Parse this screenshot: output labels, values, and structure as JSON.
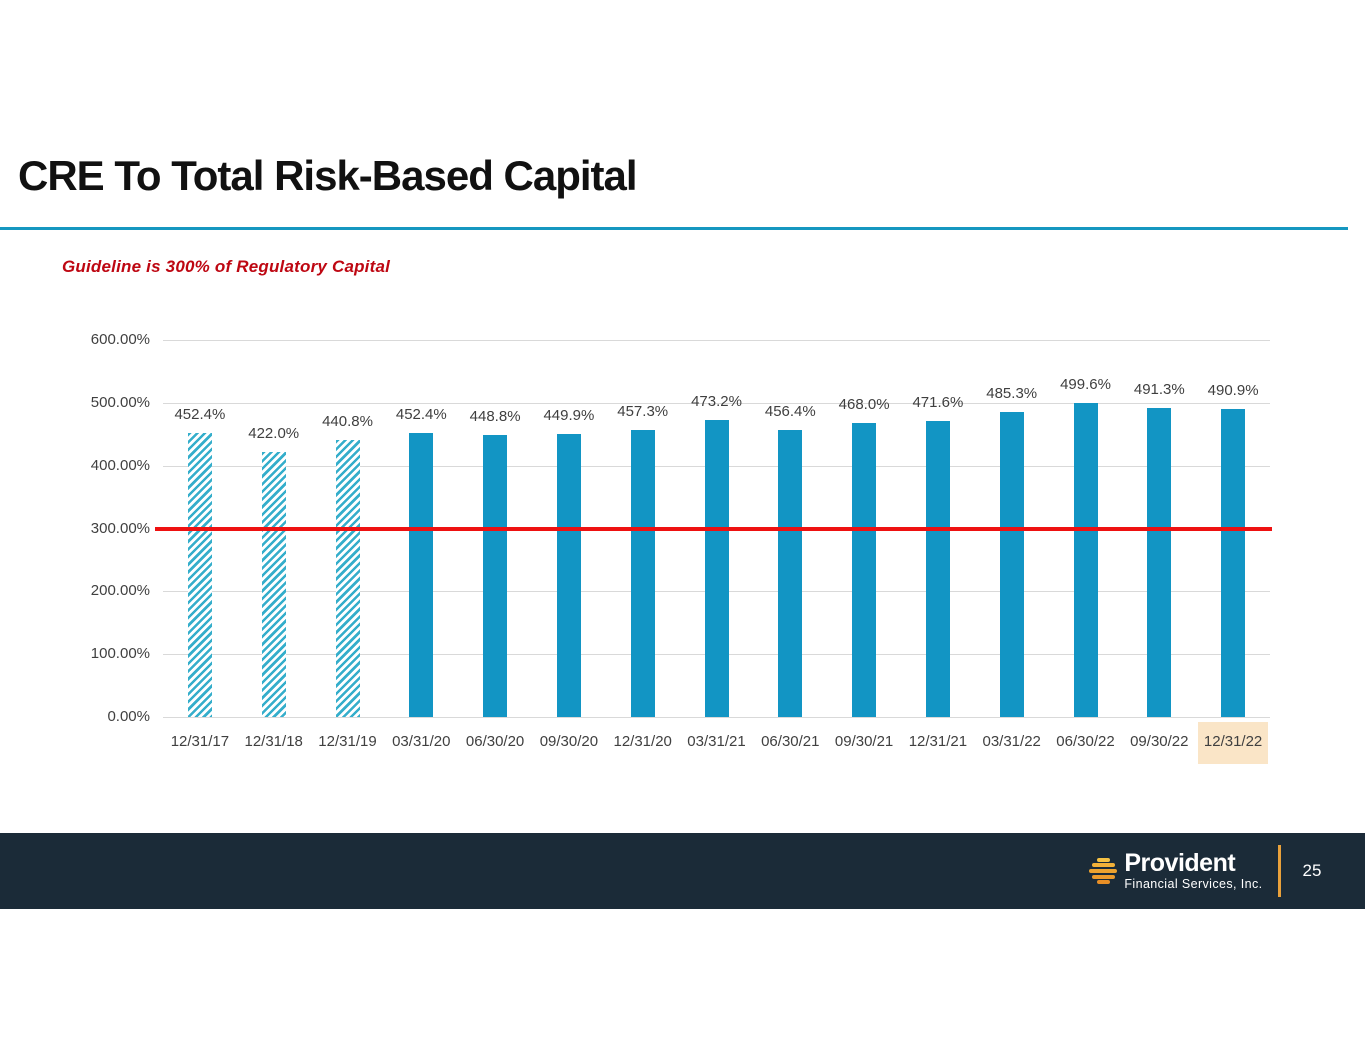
{
  "slide": {
    "title": "CRE To Total Risk-Based Capital",
    "subtitle": "Guideline is 300% of Regulatory Capital",
    "page_number": "25",
    "footer_brand": {
      "name": "Provident",
      "tagline": "Financial Services, Inc."
    }
  },
  "colors": {
    "title_text": "#111111",
    "divider_blue": "#1697c0",
    "subtitle_red": "#be0712",
    "bar_solid": "#1295c4",
    "bar_hatch_stripe": "#35aecb",
    "guideline_red": "#ee1111",
    "gridline_gray": "#d9d9d9",
    "axis_text": "#404040",
    "highlight_peach": "#fae5c7",
    "footer_bg": "#1b2b38",
    "accent_orange": "#e9a13b",
    "logo_gold": "#f2b139"
  },
  "chart_data": {
    "type": "bar",
    "title": "CRE To Total Risk-Based Capital",
    "xlabel": "",
    "ylabel": "",
    "categories": [
      "12/31/17",
      "12/31/18",
      "12/31/19",
      "03/31/20",
      "06/30/20",
      "09/30/20",
      "12/31/20",
      "03/31/21",
      "06/30/21",
      "09/30/21",
      "12/31/21",
      "03/31/22",
      "06/30/22",
      "09/30/22",
      "12/31/22"
    ],
    "values": [
      452.4,
      422.0,
      440.8,
      452.4,
      448.8,
      449.9,
      457.3,
      473.2,
      456.4,
      468.0,
      471.6,
      485.3,
      499.6,
      491.3,
      490.9
    ],
    "data_labels": [
      "452.4%",
      "422.0%",
      "440.8%",
      "452.4%",
      "448.8%",
      "449.9%",
      "457.3%",
      "473.2%",
      "456.4%",
      "468.0%",
      "471.6%",
      "485.3%",
      "499.6%",
      "491.3%",
      "490.9%"
    ],
    "hatched_categories": [
      "12/31/17",
      "12/31/18",
      "12/31/19"
    ],
    "hatched_count": 3,
    "guideline": {
      "value": 300,
      "label": "Guideline is 300% of Regulatory Capital"
    },
    "ylim": [
      0,
      600
    ],
    "ytick_step": 100,
    "ytick_labels": [
      "0.00%",
      "100.00%",
      "200.00%",
      "300.00%",
      "400.00%",
      "500.00%",
      "600.00%"
    ],
    "grid": true,
    "legend_position": "none",
    "highlighted_category": "12/31/22"
  }
}
